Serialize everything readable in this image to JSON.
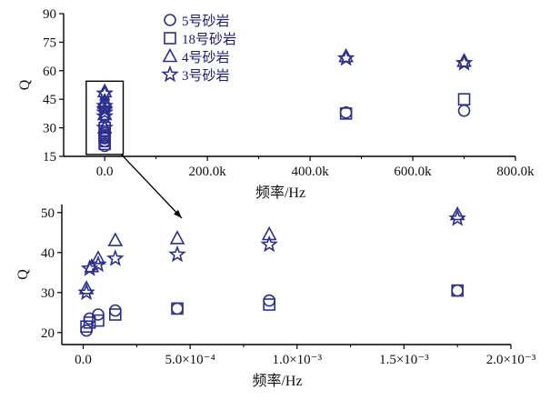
{
  "chart_data": [
    {
      "type": "scatter",
      "xlabel": "频率/Hz",
      "ylabel": "Q",
      "xlim": [
        -80000,
        800000
      ],
      "ylim": [
        15,
        90
      ],
      "xticks": [
        "0.0",
        "200.0k",
        "400.0k",
        "600.0k",
        "800.0k"
      ],
      "yticks": [
        "15",
        "30",
        "45",
        "60",
        "75",
        "90"
      ],
      "xtick_values": [
        0,
        200000,
        400000,
        600000,
        800000
      ],
      "ytick_values": [
        15,
        30,
        45,
        60,
        75,
        90
      ],
      "legend_position": "top-left",
      "series": [
        {
          "name": "5号砂岩",
          "marker": "circle",
          "x": [
            0,
            0,
            0,
            0,
            0,
            0,
            470000,
            700000
          ],
          "y": [
            20.5,
            23,
            24.5,
            25,
            26,
            28,
            38,
            39
          ]
        },
        {
          "name": "18号砂岩",
          "marker": "square",
          "x": [
            0,
            0,
            0,
            0,
            0,
            0,
            470000,
            700000
          ],
          "y": [
            21.5,
            23,
            25,
            26,
            27,
            30,
            37.5,
            45
          ]
        },
        {
          "name": "4号砂岩",
          "marker": "triangle",
          "x": [
            0,
            0,
            0,
            0,
            0,
            0,
            470000,
            700000
          ],
          "y": [
            30,
            37,
            43,
            43,
            44,
            49,
            67.5,
            65
          ]
        },
        {
          "name": "3号砂岩",
          "marker": "star",
          "x": [
            0,
            0,
            0,
            0,
            0,
            0,
            470000,
            700000
          ],
          "y": [
            30,
            36,
            38,
            39.5,
            41.5,
            48,
            66.5,
            64
          ]
        }
      ],
      "annotation": "inset box around x = 0 expanded below"
    },
    {
      "type": "scatter",
      "xlabel": "频率/Hz",
      "ylabel": "Q",
      "xlim": [
        -0.0001,
        0.002
      ],
      "ylim": [
        17,
        52
      ],
      "xticks": [
        "0.0",
        "5.0×10⁻⁴",
        "1.0×10⁻³",
        "1.5×10⁻³",
        "2.0×10⁻³"
      ],
      "yticks": [
        "20",
        "30",
        "40",
        "50"
      ],
      "xtick_values": [
        0,
        0.0005,
        0.001,
        0.0015,
        0.002
      ],
      "ytick_values": [
        20,
        30,
        40,
        50
      ],
      "series": [
        {
          "name": "5号砂岩",
          "marker": "circle",
          "x": [
            1.5e-05,
            3e-05,
            7e-05,
            0.00015,
            0.00044,
            0.00087,
            0.00175
          ],
          "y": [
            20.5,
            23.5,
            24.5,
            25.5,
            26,
            28,
            30.5
          ]
        },
        {
          "name": "18号砂岩",
          "marker": "square",
          "x": [
            1.5e-05,
            3e-05,
            7e-05,
            0.00015,
            0.00044,
            0.00087,
            0.00175
          ],
          "y": [
            21.5,
            22.5,
            23,
            24.5,
            26,
            27,
            30.5
          ]
        },
        {
          "name": "4号砂岩",
          "marker": "triangle",
          "x": [
            1.5e-05,
            4e-05,
            7e-05,
            0.00015,
            0.00044,
            0.00087,
            0.00175
          ],
          "y": [
            31,
            36.5,
            38.5,
            43,
            43.5,
            44.5,
            49.5
          ]
        },
        {
          "name": "3号砂岩",
          "marker": "star",
          "x": [
            1.5e-05,
            3e-05,
            7e-05,
            0.00015,
            0.00044,
            0.00087,
            0.00175
          ],
          "y": [
            30,
            36,
            37,
            38.5,
            39.5,
            42,
            48.5
          ]
        }
      ]
    }
  ]
}
